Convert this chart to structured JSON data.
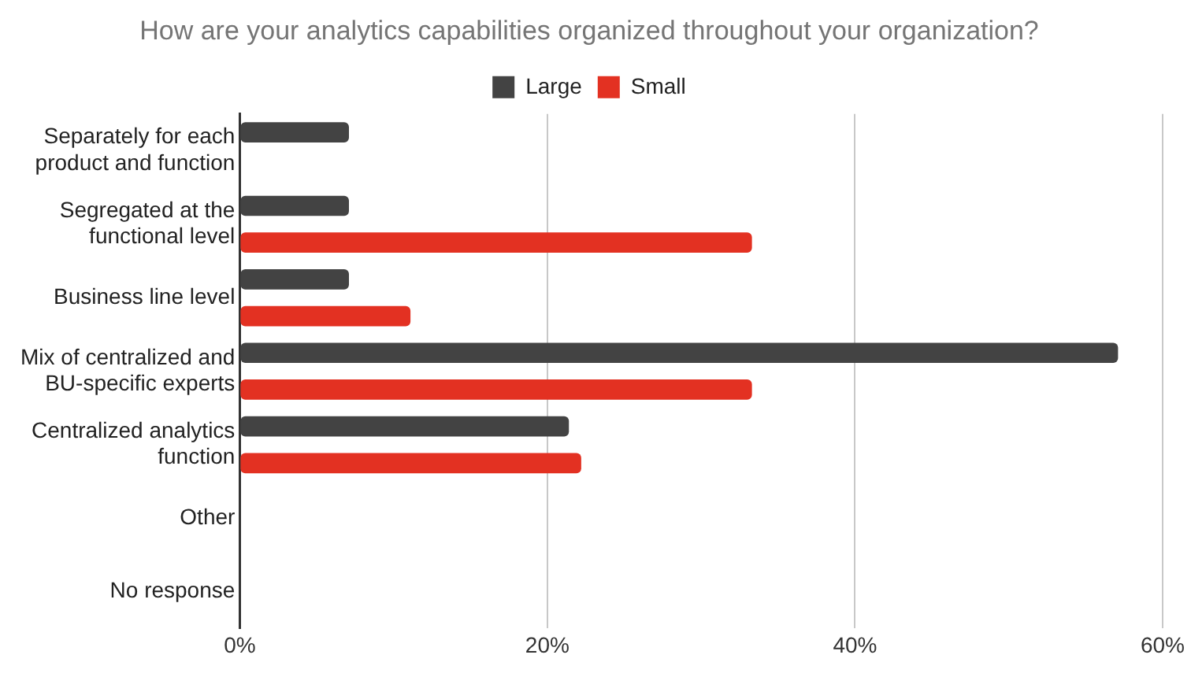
{
  "chart_data": {
    "type": "bar",
    "orientation": "horizontal",
    "title": "How are your analytics capabilities organized throughout your organization?",
    "categories": [
      "Separately for each product and function",
      "Segregated at the functional level",
      "Business line level",
      "Mix of centralized and BU-specific experts",
      "Centralized analytics function",
      "Other",
      "No response"
    ],
    "series": [
      {
        "name": "Large",
        "color": "#434343",
        "values": [
          7.1,
          7.1,
          7.1,
          57.1,
          21.4,
          0,
          0
        ]
      },
      {
        "name": "Small",
        "color": "#e33122",
        "values": [
          0,
          33.3,
          11.1,
          33.3,
          22.2,
          0,
          0
        ]
      }
    ],
    "xlim": [
      0,
      60
    ],
    "xticks": [
      {
        "value": 0,
        "label": "0%"
      },
      {
        "value": 20,
        "label": "20%"
      },
      {
        "value": 40,
        "label": "40%"
      },
      {
        "value": 60,
        "label": "60%"
      }
    ],
    "grid": "x",
    "legend": "top"
  }
}
